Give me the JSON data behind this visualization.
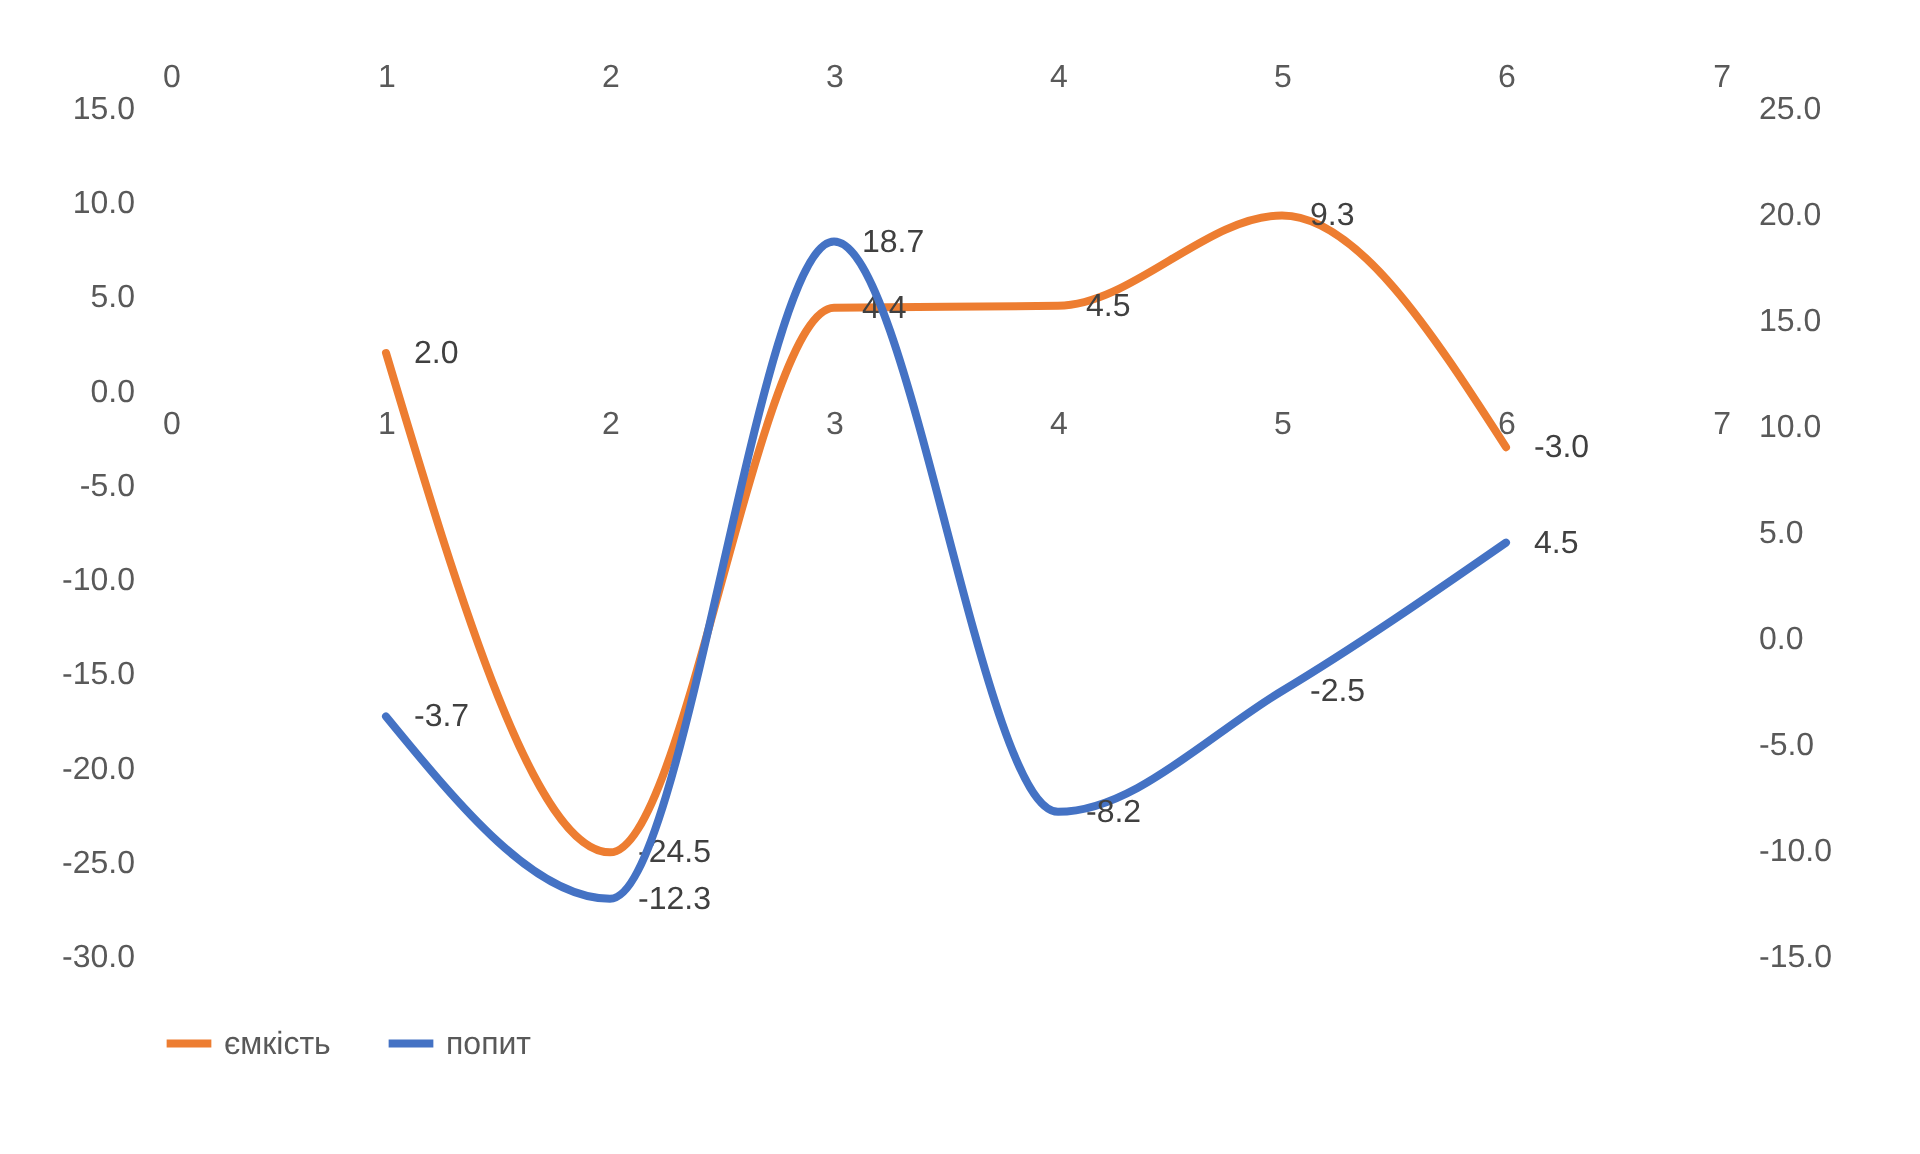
{
  "chart_data": {
    "type": "line",
    "x": [
      1,
      2,
      3,
      4,
      5,
      6
    ],
    "series": [
      {
        "name": "ємкість",
        "color": "#ed7d31",
        "values": [
          2.0,
          -24.5,
          4.4,
          4.5,
          9.3,
          -3.0
        ],
        "value_labels": [
          "2.0",
          "-24.5",
          "4.4",
          "4.5",
          "9.3",
          "-3.0"
        ]
      },
      {
        "name": "попит",
        "color": "#4472c4",
        "axis": "y2",
        "values": [
          -3.7,
          -12.3,
          18.7,
          -8.2,
          -2.5,
          4.5
        ],
        "value_labels": [
          "-3.7",
          "-12.3",
          "18.7",
          "-8.2",
          "-2.5",
          "4.5"
        ]
      }
    ],
    "xlim": [
      0,
      7
    ],
    "xticks": [
      0,
      1,
      2,
      3,
      4,
      5,
      6,
      7
    ],
    "x2lim": [
      0,
      7
    ],
    "x2ticks": [
      0,
      1,
      2,
      3,
      4,
      5,
      6,
      7
    ],
    "ylim": [
      -30,
      15
    ],
    "yticks": [
      {
        "value": -30,
        "label": "-30.0"
      },
      {
        "value": -25,
        "label": "-25.0"
      },
      {
        "value": -20,
        "label": "-20.0"
      },
      {
        "value": -15,
        "label": "-15.0"
      },
      {
        "value": -10,
        "label": "-10.0"
      },
      {
        "value": -5,
        "label": "-5.0"
      },
      {
        "value": 0,
        "label": "0.0"
      },
      {
        "value": 5,
        "label": "5.0"
      },
      {
        "value": 10,
        "label": "10.0"
      },
      {
        "value": 15,
        "label": "15.0"
      }
    ],
    "y2lim": [
      -15,
      25
    ],
    "y2ticks": [
      {
        "value": -15,
        "label": "-15.0"
      },
      {
        "value": -10,
        "label": "-10.0"
      },
      {
        "value": -5,
        "label": "-5.0"
      },
      {
        "value": 0,
        "label": "0.0"
      },
      {
        "value": 5,
        "label": "5.0"
      },
      {
        "value": 10,
        "label": "10.0"
      },
      {
        "value": 15,
        "label": "15.0"
      },
      {
        "value": 20,
        "label": "20.0"
      },
      {
        "value": 25,
        "label": "25.0"
      }
    ],
    "legend": "bottom",
    "marker": "none",
    "line_style": "solid"
  }
}
